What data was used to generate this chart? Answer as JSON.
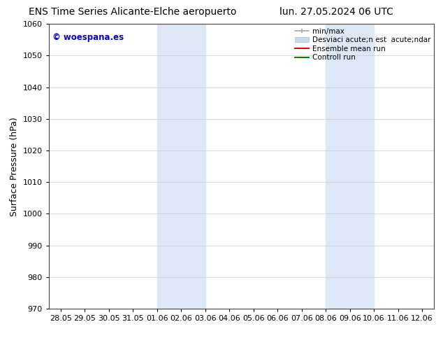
{
  "title_left": "ENS Time Series Alicante-Elche aeropuerto",
  "title_right": "lun. 27.05.2024 06 UTC",
  "ylabel": "Surface Pressure (hPa)",
  "ylim": [
    970,
    1060
  ],
  "yticks": [
    970,
    980,
    990,
    1000,
    1010,
    1020,
    1030,
    1040,
    1050,
    1060
  ],
  "xtick_labels": [
    "28.05",
    "29.05",
    "30.05",
    "31.05",
    "01.06",
    "02.06",
    "03.06",
    "04.06",
    "05.06",
    "06.06",
    "07.06",
    "08.06",
    "09.06",
    "10.06",
    "11.06",
    "12.06"
  ],
  "shaded_bands": [
    {
      "x_start": "01.06",
      "x_end": "03.06"
    },
    {
      "x_start": "08.06",
      "x_end": "10.06"
    }
  ],
  "watermark_text": "© woespana.es",
  "watermark_color": "#0000cc",
  "background_color": "#ffffff",
  "plot_bg_color": "#ffffff",
  "shade_color": "#dce8f5",
  "legend_labels": [
    "min/max",
    "Desviaci acute;n est  acute;ndar",
    "Ensemble mean run",
    "Controll run"
  ],
  "legend_colors": [
    "#aaaaaa",
    "#c8daea",
    "#ff0000",
    "#008800"
  ],
  "title_fontsize": 10,
  "axis_label_fontsize": 9,
  "tick_fontsize": 8,
  "watermark_fontsize": 8.5,
  "legend_fontsize": 7.5,
  "grid_color": "#cccccc",
  "grid_linestyle": "solid",
  "grid_linewidth": 0.5
}
